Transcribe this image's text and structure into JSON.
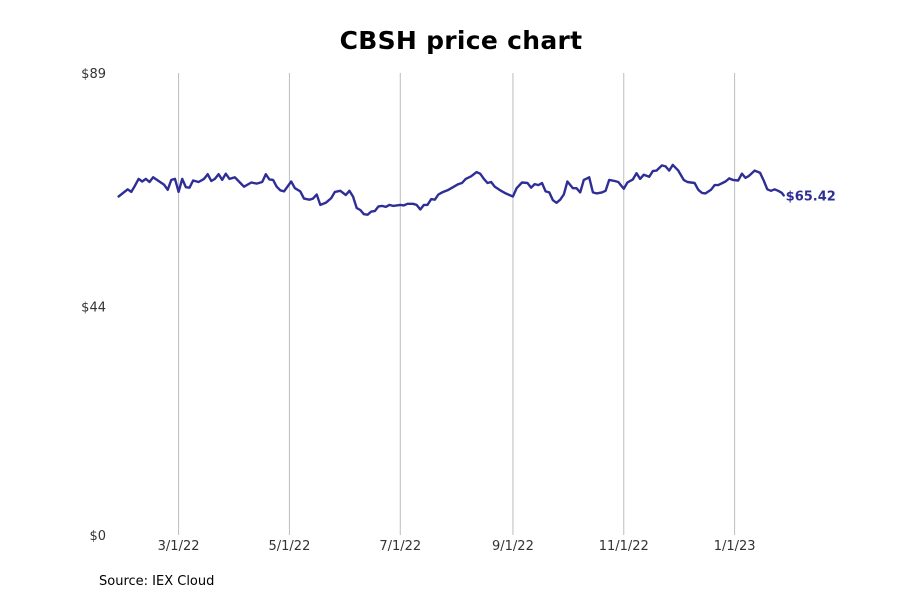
{
  "chart_data": {
    "type": "line",
    "title": "CBSH price chart",
    "xlabel": "",
    "ylabel": "",
    "y_ticks": [
      {
        "value": 0,
        "label": "$0"
      },
      {
        "value": 44,
        "label": "$44"
      },
      {
        "value": 89,
        "label": "$89"
      }
    ],
    "ylim": [
      0,
      89
    ],
    "xlim": [
      "2022-01-14",
      "2023-02-28"
    ],
    "x_ticks": [
      {
        "date": "2022-03-01",
        "label": "3/1/22"
      },
      {
        "date": "2022-05-01",
        "label": "5/1/22"
      },
      {
        "date": "2022-07-01",
        "label": "7/1/22"
      },
      {
        "date": "2022-09-01",
        "label": "9/1/22"
      },
      {
        "date": "2022-11-01",
        "label": "11/1/22"
      },
      {
        "date": "2023-01-01",
        "label": "1/1/23"
      }
    ],
    "grid": "vertical",
    "series": [
      {
        "color": "#2e2e96",
        "points": [
          [
            "2022-01-27",
            65.2
          ],
          [
            "2022-02-01",
            66.6
          ],
          [
            "2022-02-03",
            66.1
          ],
          [
            "2022-02-05",
            67.3
          ],
          [
            "2022-02-07",
            68.6
          ],
          [
            "2022-02-09",
            68.1
          ],
          [
            "2022-02-11",
            68.6
          ],
          [
            "2022-02-13",
            68.0
          ],
          [
            "2022-02-15",
            68.9
          ],
          [
            "2022-02-18",
            68.2
          ],
          [
            "2022-02-21",
            67.5
          ],
          [
            "2022-02-23",
            66.5
          ],
          [
            "2022-02-25",
            68.4
          ],
          [
            "2022-02-27",
            68.6
          ],
          [
            "2022-03-01",
            66.1
          ],
          [
            "2022-03-03",
            68.6
          ],
          [
            "2022-03-05",
            67.0
          ],
          [
            "2022-03-07",
            66.9
          ],
          [
            "2022-03-09",
            68.3
          ],
          [
            "2022-03-12",
            68.0
          ],
          [
            "2022-03-15",
            68.6
          ],
          [
            "2022-03-17",
            69.5
          ],
          [
            "2022-03-19",
            68.2
          ],
          [
            "2022-03-21",
            68.6
          ],
          [
            "2022-03-23",
            69.5
          ],
          [
            "2022-03-25",
            68.4
          ],
          [
            "2022-03-27",
            69.6
          ],
          [
            "2022-03-29",
            68.6
          ],
          [
            "2022-04-01",
            68.9
          ],
          [
            "2022-04-04",
            67.8
          ],
          [
            "2022-04-06",
            67.1
          ],
          [
            "2022-04-08",
            67.5
          ],
          [
            "2022-04-10",
            67.9
          ],
          [
            "2022-04-13",
            67.7
          ],
          [
            "2022-04-16",
            68.0
          ],
          [
            "2022-04-18",
            69.5
          ],
          [
            "2022-04-20",
            68.5
          ],
          [
            "2022-04-22",
            68.4
          ],
          [
            "2022-04-24",
            67.1
          ],
          [
            "2022-04-26",
            66.4
          ],
          [
            "2022-04-28",
            66.2
          ],
          [
            "2022-05-02",
            68.1
          ],
          [
            "2022-05-04",
            66.8
          ],
          [
            "2022-05-07",
            66.2
          ],
          [
            "2022-05-09",
            64.8
          ],
          [
            "2022-05-12",
            64.6
          ],
          [
            "2022-05-14",
            64.8
          ],
          [
            "2022-05-16",
            65.6
          ],
          [
            "2022-05-18",
            63.6
          ],
          [
            "2022-05-21",
            64.0
          ],
          [
            "2022-05-24",
            64.9
          ],
          [
            "2022-05-26",
            66.1
          ],
          [
            "2022-05-29",
            66.3
          ],
          [
            "2022-06-01",
            65.5
          ],
          [
            "2022-06-03",
            66.3
          ],
          [
            "2022-06-05",
            65.2
          ],
          [
            "2022-06-07",
            63.0
          ],
          [
            "2022-06-09",
            62.6
          ],
          [
            "2022-06-11",
            61.8
          ],
          [
            "2022-06-13",
            61.7
          ],
          [
            "2022-06-15",
            62.3
          ],
          [
            "2022-06-17",
            62.4
          ],
          [
            "2022-06-19",
            63.3
          ],
          [
            "2022-06-21",
            63.4
          ],
          [
            "2022-06-23",
            63.2
          ],
          [
            "2022-06-25",
            63.6
          ],
          [
            "2022-06-27",
            63.4
          ],
          [
            "2022-07-01",
            63.6
          ],
          [
            "2022-07-03",
            63.5
          ],
          [
            "2022-07-05",
            63.8
          ],
          [
            "2022-07-08",
            63.8
          ],
          [
            "2022-07-10",
            63.6
          ],
          [
            "2022-07-12",
            62.7
          ],
          [
            "2022-07-14",
            63.6
          ],
          [
            "2022-07-16",
            63.6
          ],
          [
            "2022-07-18",
            64.7
          ],
          [
            "2022-07-20",
            64.6
          ],
          [
            "2022-07-22",
            65.6
          ],
          [
            "2022-07-24",
            66.0
          ],
          [
            "2022-07-27",
            66.4
          ],
          [
            "2022-07-30",
            67.0
          ],
          [
            "2022-08-02",
            67.6
          ],
          [
            "2022-08-04",
            67.8
          ],
          [
            "2022-08-06",
            68.6
          ],
          [
            "2022-08-09",
            69.1
          ],
          [
            "2022-08-12",
            69.9
          ],
          [
            "2022-08-14",
            69.6
          ],
          [
            "2022-08-16",
            68.6
          ],
          [
            "2022-08-18",
            67.8
          ],
          [
            "2022-08-20",
            68.0
          ],
          [
            "2022-08-22",
            67.1
          ],
          [
            "2022-08-25",
            66.4
          ],
          [
            "2022-08-28",
            65.8
          ],
          [
            "2022-09-01",
            65.2
          ],
          [
            "2022-09-03",
            66.8
          ],
          [
            "2022-09-06",
            67.9
          ],
          [
            "2022-09-09",
            67.8
          ],
          [
            "2022-09-11",
            66.9
          ],
          [
            "2022-09-13",
            67.6
          ],
          [
            "2022-09-15",
            67.4
          ],
          [
            "2022-09-17",
            67.8
          ],
          [
            "2022-09-19",
            66.2
          ],
          [
            "2022-09-21",
            66.0
          ],
          [
            "2022-09-23",
            64.5
          ],
          [
            "2022-09-25",
            64.0
          ],
          [
            "2022-09-27",
            64.6
          ],
          [
            "2022-09-29",
            65.6
          ],
          [
            "2022-10-01",
            68.1
          ],
          [
            "2022-10-04",
            66.8
          ],
          [
            "2022-10-06",
            66.8
          ],
          [
            "2022-10-08",
            66.0
          ],
          [
            "2022-10-10",
            68.4
          ],
          [
            "2022-10-13",
            68.9
          ],
          [
            "2022-10-15",
            66.0
          ],
          [
            "2022-10-17",
            65.8
          ],
          [
            "2022-10-20",
            66.0
          ],
          [
            "2022-10-22",
            66.3
          ],
          [
            "2022-10-24",
            68.4
          ],
          [
            "2022-10-27",
            68.2
          ],
          [
            "2022-10-29",
            68.0
          ],
          [
            "2022-11-01",
            66.7
          ],
          [
            "2022-11-03",
            67.9
          ],
          [
            "2022-11-06",
            68.5
          ],
          [
            "2022-11-08",
            69.7
          ],
          [
            "2022-11-10",
            68.6
          ],
          [
            "2022-11-12",
            69.4
          ],
          [
            "2022-11-15",
            69.0
          ],
          [
            "2022-11-17",
            70.1
          ],
          [
            "2022-11-19",
            70.2
          ],
          [
            "2022-11-22",
            71.2
          ],
          [
            "2022-11-24",
            71.0
          ],
          [
            "2022-11-26",
            70.2
          ],
          [
            "2022-11-28",
            71.3
          ],
          [
            "2022-12-01",
            70.2
          ],
          [
            "2022-12-04",
            68.4
          ],
          [
            "2022-12-06",
            68.0
          ],
          [
            "2022-12-08",
            67.9
          ],
          [
            "2022-12-10",
            67.8
          ],
          [
            "2022-12-12",
            66.5
          ],
          [
            "2022-12-14",
            65.9
          ],
          [
            "2022-12-16",
            65.8
          ],
          [
            "2022-12-19",
            66.5
          ],
          [
            "2022-12-21",
            67.4
          ],
          [
            "2022-12-23",
            67.4
          ],
          [
            "2022-12-27",
            68.1
          ],
          [
            "2022-12-29",
            68.7
          ],
          [
            "2022-12-31",
            68.4
          ],
          [
            "2023-01-03",
            68.3
          ],
          [
            "2023-01-05",
            69.6
          ],
          [
            "2023-01-07",
            68.8
          ],
          [
            "2023-01-09",
            69.2
          ],
          [
            "2023-01-12",
            70.2
          ],
          [
            "2023-01-15",
            69.8
          ],
          [
            "2023-01-17",
            68.3
          ],
          [
            "2023-01-19",
            66.6
          ],
          [
            "2023-01-21",
            66.3
          ],
          [
            "2023-01-23",
            66.6
          ],
          [
            "2023-01-25",
            66.3
          ],
          [
            "2023-01-27",
            65.9
          ],
          [
            "2023-01-28",
            65.42
          ]
        ]
      }
    ],
    "last_value_label": "$65.42",
    "source": "Source: IEX Cloud"
  }
}
